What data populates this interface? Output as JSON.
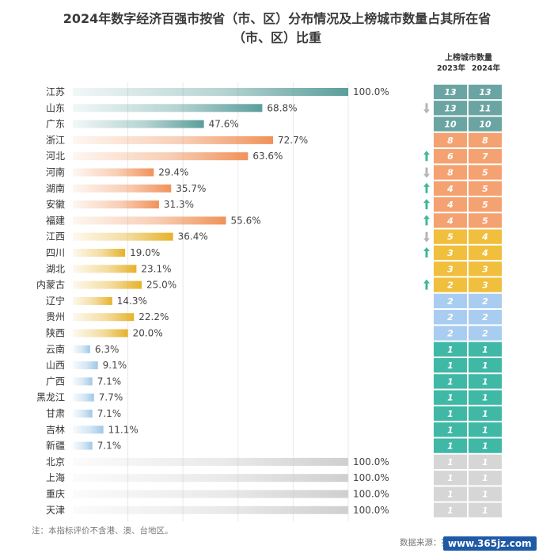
{
  "chart_data": {
    "type": "bar",
    "title_line1": "2024年数字经济百强市按省（市、区）分布情况及上榜城市数量占其所在省",
    "title_line2": "（市、区）比重",
    "categories": [
      "江苏",
      "山东",
      "广东",
      "浙江",
      "河北",
      "河南",
      "湖南",
      "安徽",
      "福建",
      "江西",
      "四川",
      "湖北",
      "内蒙古",
      "辽宁",
      "贵州",
      "陕西",
      "云南",
      "山西",
      "广西",
      "黑龙江",
      "甘肃",
      "吉林",
      "新疆",
      "北京",
      "上海",
      "重庆",
      "天津"
    ],
    "values": [
      100.0,
      68.8,
      47.6,
      72.7,
      63.6,
      29.4,
      35.7,
      31.3,
      55.6,
      36.4,
      19.0,
      23.1,
      25.0,
      14.3,
      22.2,
      20.0,
      6.3,
      9.1,
      7.1,
      7.7,
      7.1,
      11.1,
      7.1,
      100.0,
      100.0,
      100.0,
      100.0
    ],
    "value_labels": [
      "100.0%",
      "68.8%",
      "47.6%",
      "72.7%",
      "63.6%",
      "29.4%",
      "35.7%",
      "31.3%",
      "55.6%",
      "36.4%",
      "19.0%",
      "23.1%",
      "25.0%",
      "14.3%",
      "22.2%",
      "20.0%",
      "6.3%",
      "9.1%",
      "7.1%",
      "7.7%",
      "7.1%",
      "11.1%",
      "7.1%",
      "100.0%",
      "100.0%",
      "100.0%",
      "100.0%"
    ],
    "groups": [
      "teal",
      "teal",
      "teal",
      "orange",
      "orange",
      "orange",
      "orange",
      "orange",
      "orange",
      "gold",
      "gold",
      "gold",
      "gold",
      "gold",
      "gold",
      "gold",
      "sky",
      "sky",
      "sky",
      "sky",
      "sky",
      "sky",
      "sky",
      "gray",
      "gray",
      "gray",
      "gray"
    ],
    "table_header": "上榜城市数量",
    "table_columns": [
      "2023年",
      "2024年"
    ],
    "counts_2023": [
      "13",
      "13",
      "10",
      "8",
      "6",
      "8",
      "4",
      "4",
      "4",
      "5",
      "3",
      "3",
      "2",
      "2",
      "2",
      "2",
      "1",
      "1",
      "1",
      "1",
      "1",
      "1",
      "1",
      "1",
      "1",
      "1",
      "1"
    ],
    "counts_2024": [
      "13",
      "11",
      "10",
      "8",
      "7",
      "5",
      "5",
      "5",
      "5",
      "4",
      "4",
      "3",
      "3",
      "2",
      "2",
      "2",
      "1",
      "1",
      "1",
      "1",
      "1",
      "1",
      "1",
      "1",
      "1",
      "1",
      "1"
    ],
    "table_bands": [
      "teal",
      "teal",
      "teal",
      "orange",
      "orange",
      "orange",
      "orange",
      "orange",
      "orange",
      "gold",
      "gold",
      "gold",
      "gold",
      "blue",
      "blue",
      "blue",
      "green",
      "green",
      "green",
      "green",
      "green",
      "green",
      "green",
      "gray",
      "gray",
      "gray",
      "gray"
    ],
    "trends": [
      "",
      "down",
      "",
      "",
      "up",
      "down",
      "up",
      "up",
      "up",
      "down",
      "up",
      "",
      "up",
      "",
      "",
      "",
      "",
      "",
      "",
      "",
      "",
      "",
      "",
      "",
      "",
      "",
      ""
    ],
    "xlim": [
      0,
      100
    ]
  },
  "colors": {
    "teal": "#5b9e9b",
    "orange": "#f0925a",
    "gold": "#e6b22a",
    "sky": "#9fc8e8",
    "gray": "#cfcfcf",
    "table_teal": "#6aa5a3",
    "table_orange": "#f4a271",
    "table_gold": "#f0bf3e",
    "table_blue": "#a9cdf0",
    "table_green": "#3fb8a6",
    "table_gray": "#d6d6d6",
    "arrow_up": "#3fb89b",
    "arrow_down": "#b5b5b5"
  },
  "note": "注：本指标评价不含港、澳、台地区。",
  "source": "数据来源：赛迪顾问",
  "watermark": "www.365jz.com"
}
